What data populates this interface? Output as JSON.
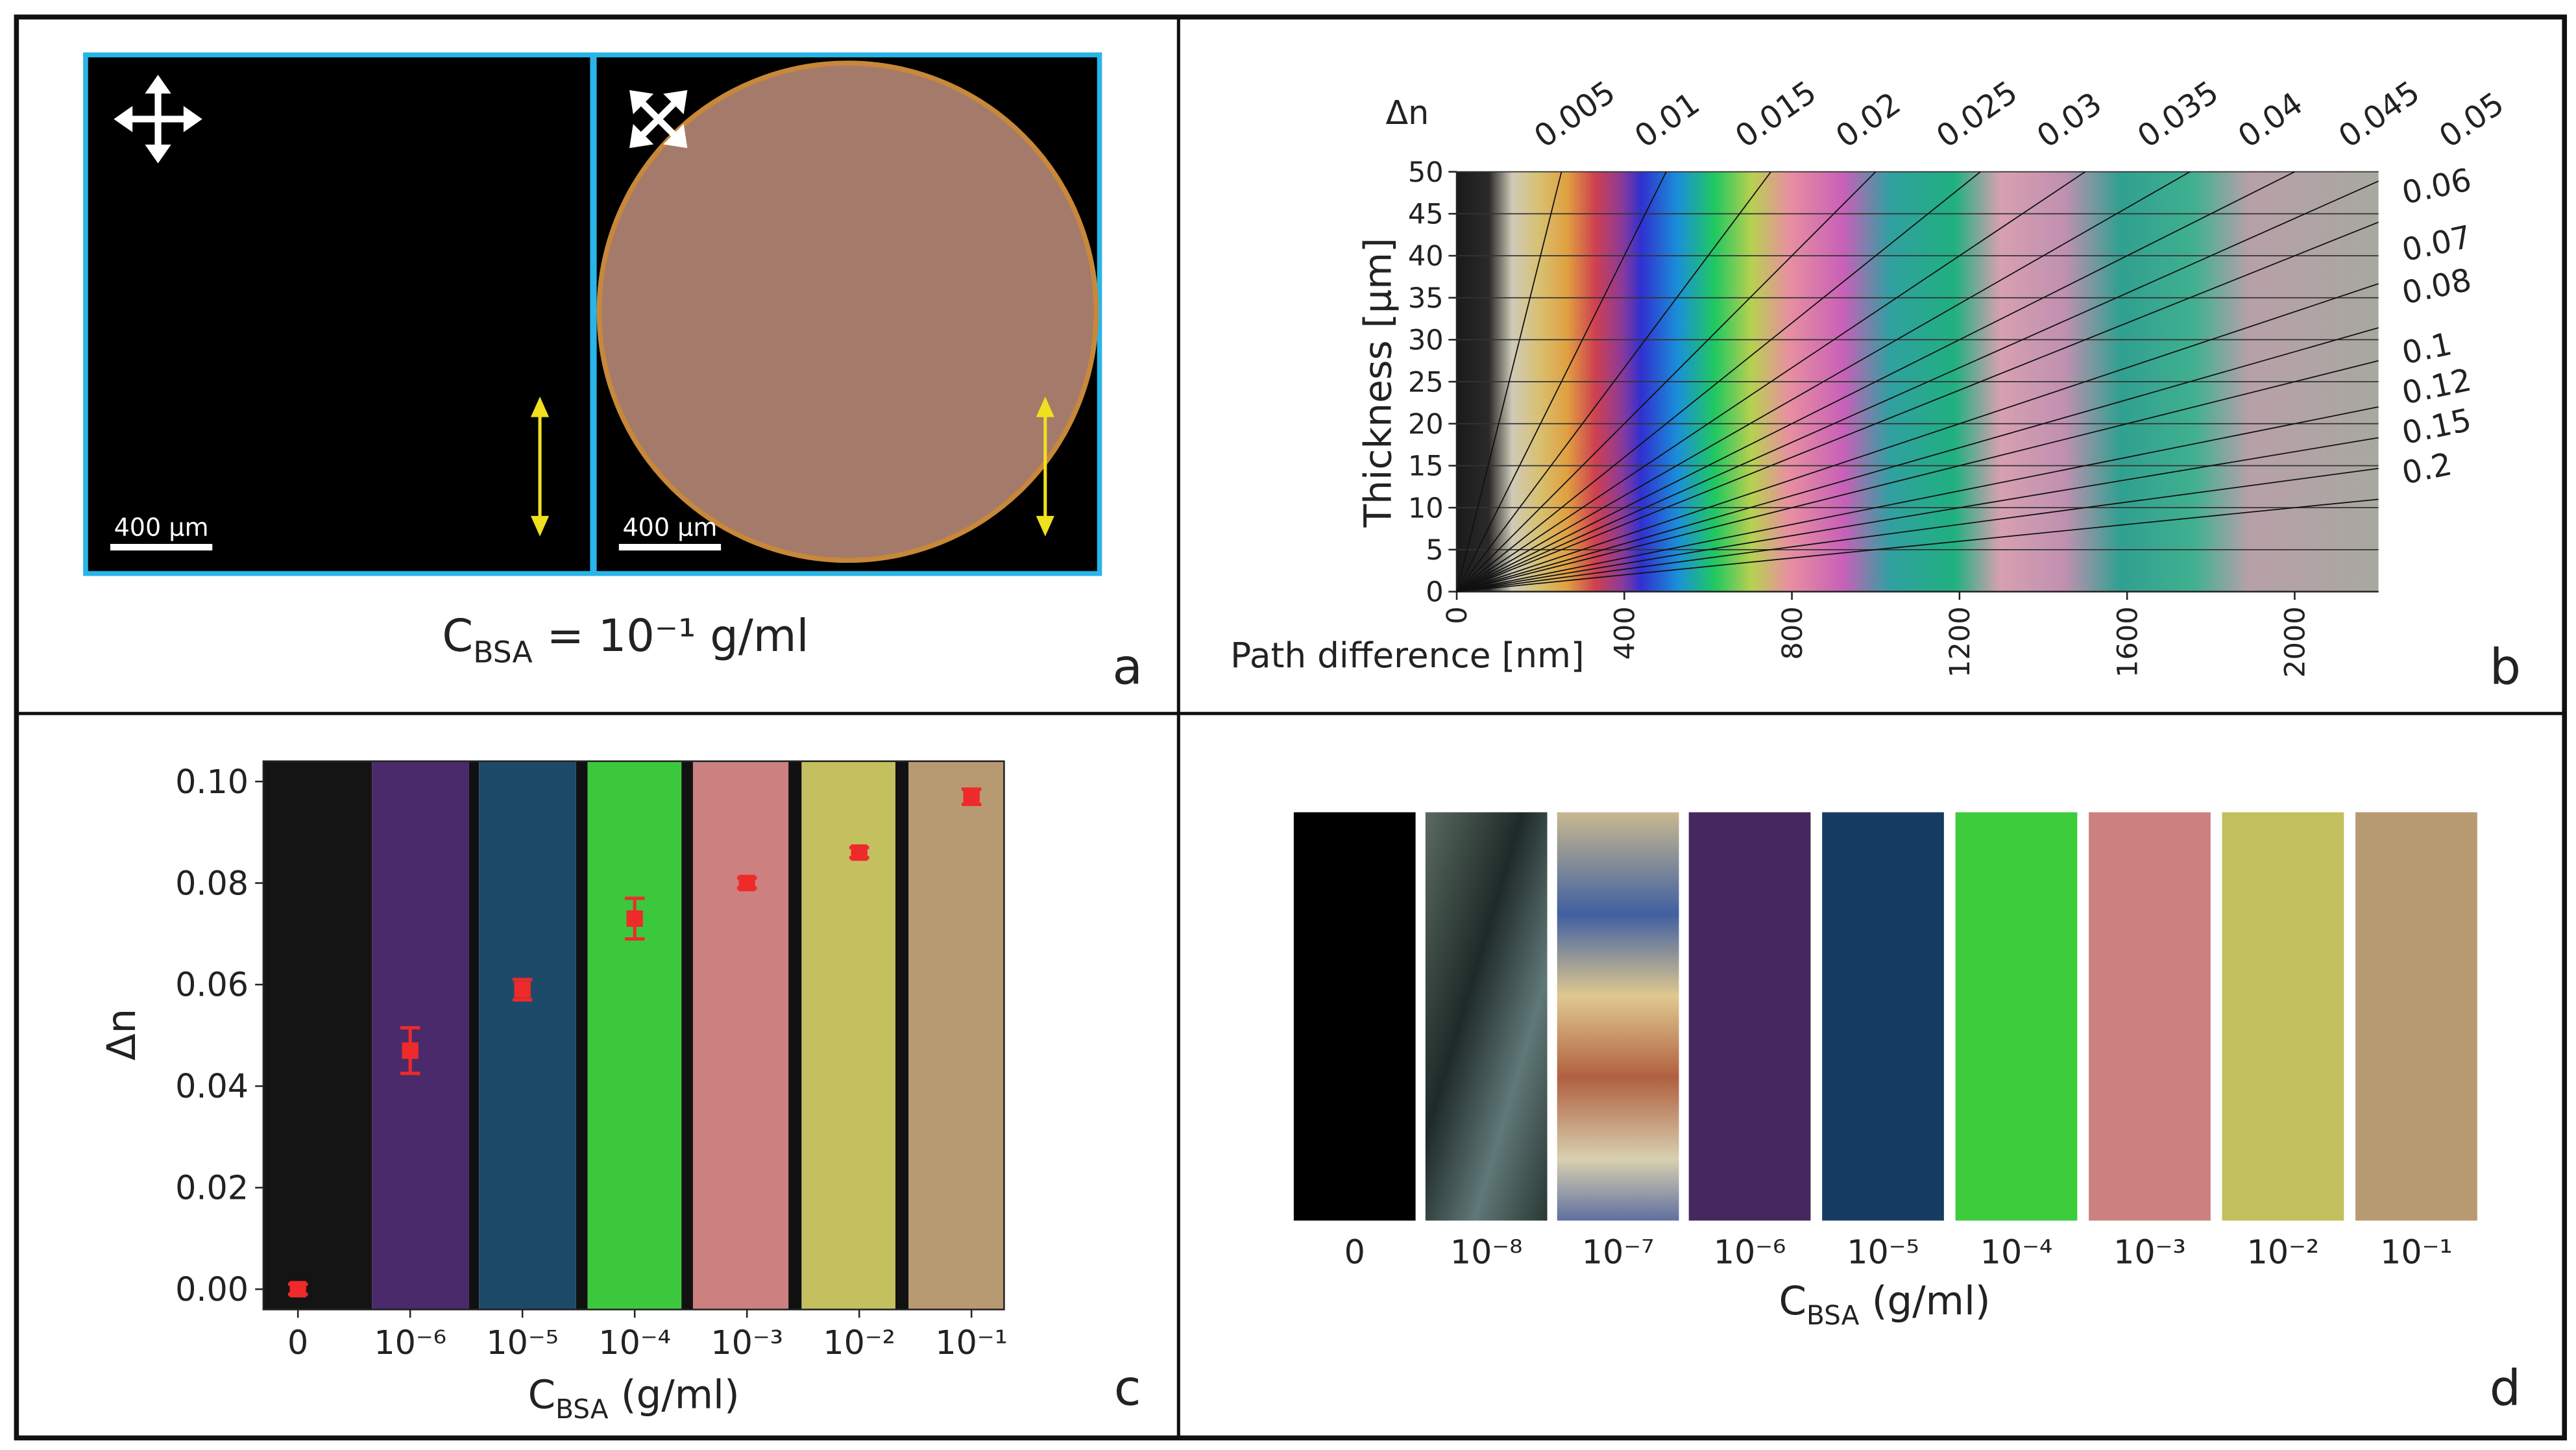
{
  "panel_a": {
    "caption": {
      "main": "C",
      "sub": "BSA",
      "rest": " = 10⁻¹ g/ml"
    },
    "scale_bars": [
      "400 µm",
      "400 µm"
    ],
    "label": "a"
  },
  "chart_data": [
    {
      "type": "michel-levy",
      "label": "b",
      "xlabel": "Path difference [nm]",
      "ylabel": "Thickness [µm]",
      "lines_title": "Δn",
      "lines": [
        0.005,
        0.01,
        0.015,
        0.02,
        0.025,
        0.03,
        0.035,
        0.04,
        0.045,
        0.05,
        0.06,
        0.07,
        0.08,
        0.1,
        0.12,
        0.15,
        0.2
      ],
      "xlim": [
        0,
        2200
      ],
      "xticks": [
        0,
        400,
        800,
        1200,
        1600,
        2000
      ],
      "ylim": [
        0,
        50
      ],
      "yticks": [
        0,
        5,
        10,
        15,
        20,
        25,
        30,
        35,
        40,
        45,
        50
      ],
      "grid": true
    },
    {
      "type": "scatter",
      "label": "c",
      "categories": [
        "0",
        "10⁻⁶",
        "10⁻⁵",
        "10⁻⁴",
        "10⁻³",
        "10⁻²",
        "10⁻¹"
      ],
      "values": [
        0.0,
        0.047,
        0.059,
        0.073,
        0.08,
        0.086,
        0.097
      ],
      "errors": [
        0.001,
        0.0045,
        0.002,
        0.004,
        0.001,
        0.001,
        0.0015
      ],
      "color": "#ee2a2a",
      "ylabel": "Δn",
      "xlabel": {
        "main": "C",
        "sub": "BSA",
        "rest": " (g/ml)"
      },
      "ylim": [
        -0.004,
        0.104
      ],
      "yticks": [
        {
          "value": 0,
          "label": "0.00"
        },
        0.02,
        0.04,
        0.06,
        0.08,
        {
          "value": 0.1,
          "label": "0.10"
        }
      ]
    }
  ],
  "panel_d": {
    "categories": [
      "0",
      "10⁻⁸",
      "10⁻⁷",
      "10⁻⁶",
      "10⁻⁵",
      "10⁻⁴",
      "10⁻³",
      "10⁻²",
      "10⁻¹"
    ],
    "xlabel": {
      "main": "C",
      "sub": "BSA",
      "rest": " (g/ml)"
    },
    "label": "d"
  }
}
